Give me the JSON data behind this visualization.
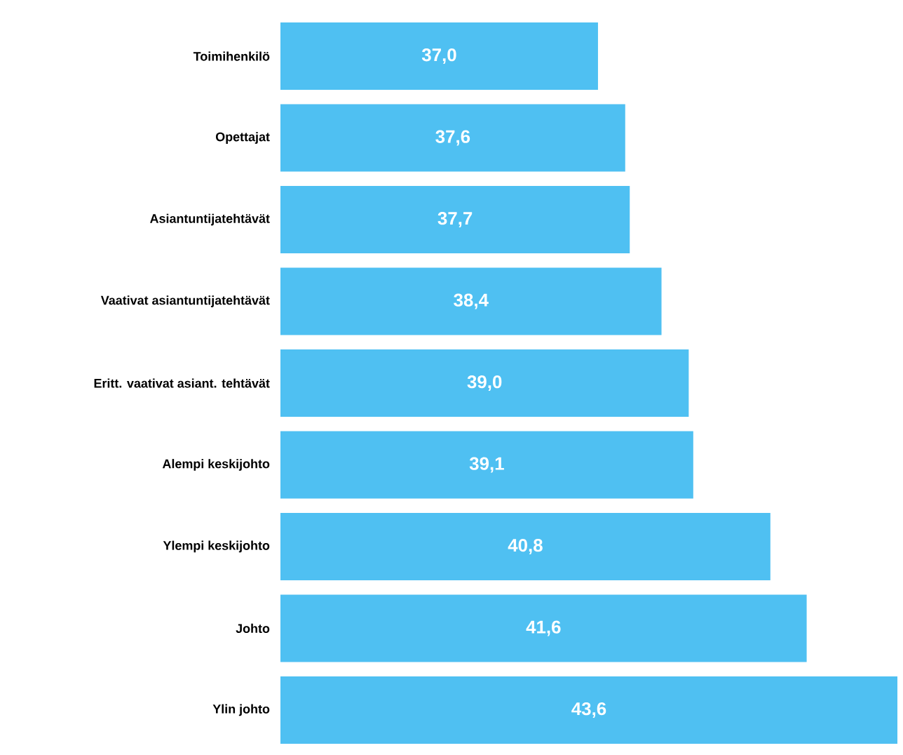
{
  "chart_data": {
    "type": "bar",
    "orientation": "horizontal",
    "categories": [
      "Toimihenkilö",
      "Opettajat",
      "Asiantuntijatehtävät",
      "Vaativat asiantuntijatehtävät",
      "Eritt. vaativat asiant. tehtävät",
      "Alempi keskijohto",
      "Ylempi keskijohto",
      "Johto",
      "Ylin johto"
    ],
    "values": [
      37.0,
      37.6,
      37.7,
      38.4,
      39.0,
      39.1,
      40.8,
      41.6,
      43.6
    ],
    "value_labels": [
      "37,0",
      "37,6",
      "37,7",
      "38,4",
      "39,0",
      "39,1",
      "40,8",
      "41,6",
      "43,6"
    ],
    "color": "#4fc0f2",
    "xlim": [
      30,
      43.6
    ],
    "tick_labels": "y"
  }
}
